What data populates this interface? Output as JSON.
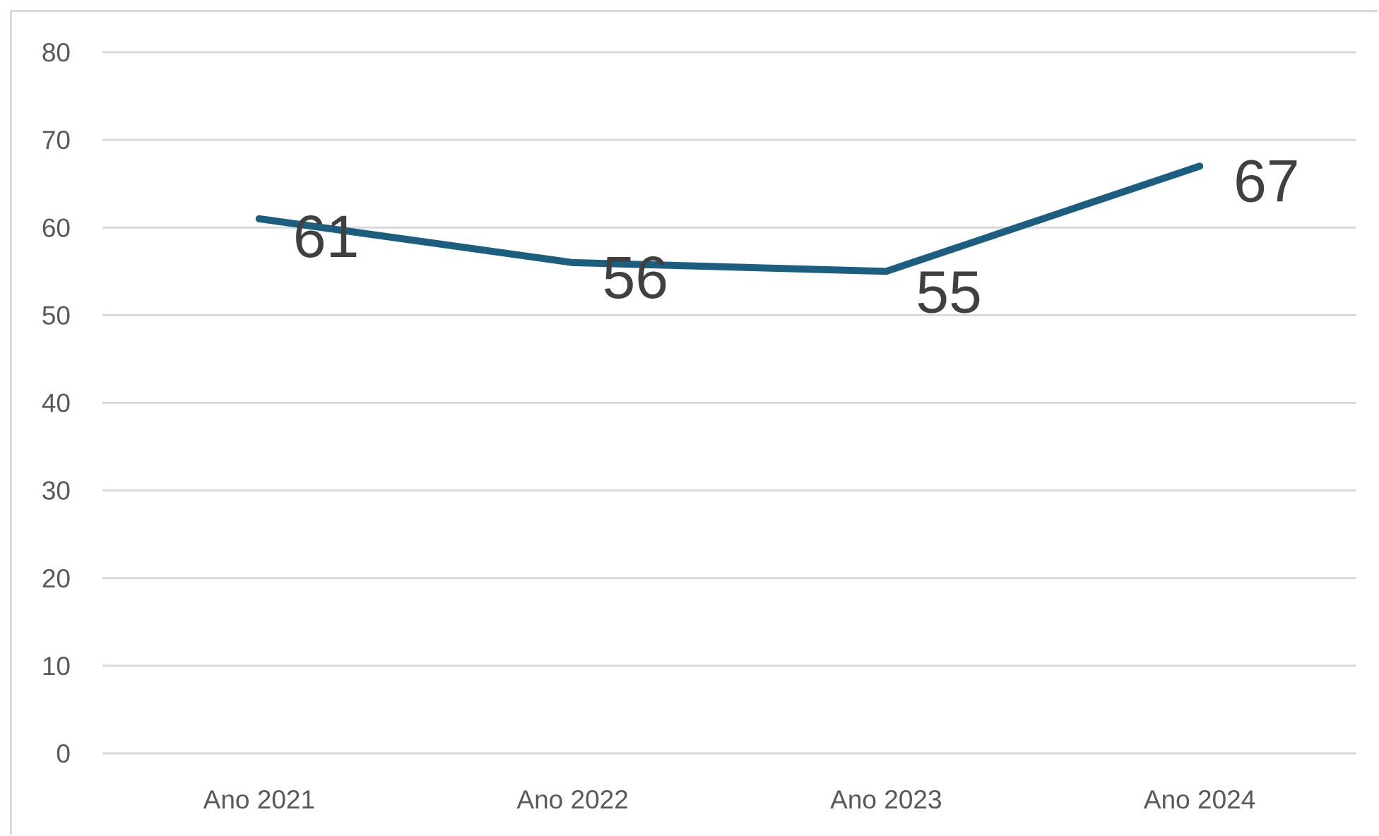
{
  "chart_data": {
    "type": "line",
    "categories": [
      "Ano 2021",
      "Ano 2022",
      "Ano 2023",
      "Ano 2024"
    ],
    "series": [
      {
        "values": [
          61,
          56,
          55,
          67
        ]
      }
    ],
    "data_labels": [
      "61",
      "56",
      "55",
      "67"
    ],
    "y_ticks": [
      "0",
      "10",
      "20",
      "30",
      "40",
      "50",
      "60",
      "70",
      "80"
    ],
    "ylim": [
      0,
      80
    ],
    "grid": true,
    "legend": "none",
    "colors": {
      "line": "#1b5e80",
      "grid": "#d9d9d9",
      "tick_text": "#595959",
      "data_label_text": "#404040"
    }
  }
}
